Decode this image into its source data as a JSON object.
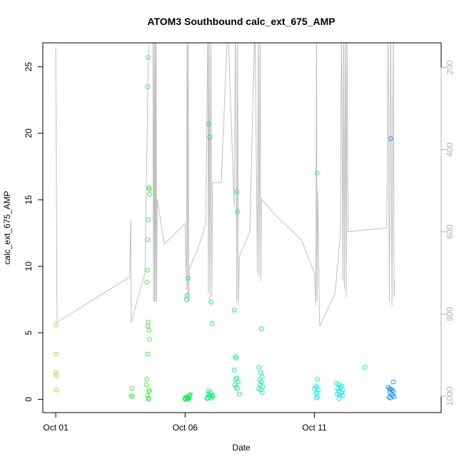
{
  "chart_data": {
    "type": "scatter",
    "title": "ATOM3 Southbound calc_ext_675_AMP",
    "xlabel": "Date",
    "ylabel": "calc_ext_675_AMP",
    "x_ticks": [
      {
        "label": "Oct 01",
        "day": 1
      },
      {
        "label": "Oct 06",
        "day": 6
      },
      {
        "label": "Oct 11",
        "day": 11
      }
    ],
    "xlim": [
      0.5,
      15.9
    ],
    "ylim": [
      -1,
      26.8
    ],
    "y_ticks": [
      0,
      5,
      10,
      15,
      20,
      25
    ],
    "depth_axis": {
      "ticks": [
        200,
        400,
        600,
        800,
        1000
      ],
      "lim": [
        1040,
        140
      ],
      "color": "#b0b0b0"
    },
    "depth_trace_color": "#c0c0c0",
    "depth_trace": [
      [
        1.0,
        150
      ],
      [
        1.05,
        820
      ],
      [
        3.85,
        710
      ],
      [
        3.9,
        570
      ],
      [
        3.92,
        820
      ],
      [
        4.45,
        700
      ],
      [
        4.6,
        90
      ],
      [
        4.75,
        90
      ],
      [
        4.78,
        770
      ],
      [
        4.8,
        90
      ],
      [
        4.82,
        770
      ],
      [
        4.84,
        90
      ],
      [
        4.86,
        770
      ],
      [
        4.88,
        90
      ],
      [
        4.9,
        770
      ],
      [
        4.92,
        520
      ],
      [
        5.2,
        630
      ],
      [
        6.0,
        580
      ],
      [
        6.05,
        740
      ],
      [
        6.08,
        90
      ],
      [
        6.1,
        760
      ],
      [
        6.12,
        90
      ],
      [
        6.14,
        770
      ],
      [
        6.16,
        690
      ],
      [
        6.5,
        640
      ],
      [
        6.8,
        580
      ],
      [
        6.88,
        90
      ],
      [
        6.9,
        750
      ],
      [
        6.93,
        90
      ],
      [
        6.96,
        770
      ],
      [
        7.0,
        90
      ],
      [
        7.03,
        760
      ],
      [
        7.06,
        480
      ],
      [
        7.4,
        480
      ],
      [
        7.65,
        90
      ],
      [
        7.9,
        540
      ],
      [
        7.95,
        90
      ],
      [
        8.0,
        770
      ],
      [
        8.03,
        90
      ],
      [
        8.06,
        780
      ],
      [
        8.1,
        660
      ],
      [
        8.5,
        600
      ],
      [
        8.7,
        90
      ],
      [
        8.8,
        700
      ],
      [
        8.83,
        90
      ],
      [
        8.86,
        710
      ],
      [
        8.9,
        90
      ],
      [
        8.93,
        720
      ],
      [
        8.95,
        520
      ],
      [
        9.5,
        560
      ],
      [
        10.5,
        620
      ],
      [
        11.0,
        700
      ],
      [
        11.05,
        780
      ],
      [
        11.08,
        90
      ],
      [
        11.1,
        770
      ],
      [
        11.13,
        500
      ],
      [
        11.2,
        830
      ],
      [
        11.8,
        750
      ],
      [
        12.0,
        610
      ],
      [
        12.05,
        90
      ],
      [
        12.1,
        720
      ],
      [
        12.13,
        90
      ],
      [
        12.16,
        740
      ],
      [
        12.2,
        90
      ],
      [
        12.23,
        760
      ],
      [
        12.26,
        90
      ],
      [
        12.3,
        600
      ],
      [
        13.8,
        590
      ],
      [
        13.85,
        90
      ],
      [
        13.9,
        770
      ],
      [
        13.95,
        90
      ],
      [
        14.0,
        780
      ],
      [
        14.05,
        90
      ],
      [
        14.08,
        760
      ],
      [
        14.1,
        720
      ]
    ],
    "series": [
      {
        "color": "#99e03a",
        "points": [
          [
            1.0,
            5.6
          ],
          [
            1.02,
            3.4
          ],
          [
            1.0,
            2.0
          ],
          [
            1.02,
            1.8
          ],
          [
            1.03,
            0.7
          ]
        ]
      },
      {
        "color": "#44e84a",
        "points": [
          [
            3.95,
            0.8
          ],
          [
            3.92,
            0.25
          ],
          [
            3.96,
            0.2
          ],
          [
            4.55,
            12.0
          ],
          [
            4.6,
            15.9
          ],
          [
            4.62,
            15.8
          ],
          [
            4.63,
            15.4
          ],
          [
            4.58,
            13.5
          ],
          [
            4.57,
            25.7
          ],
          [
            4.55,
            23.5
          ],
          [
            4.55,
            9.7
          ],
          [
            4.52,
            8.8
          ],
          [
            4.58,
            5.8
          ],
          [
            4.56,
            5.5
          ],
          [
            4.6,
            5.2
          ],
          [
            4.62,
            4.5
          ],
          [
            4.55,
            3.4
          ],
          [
            4.52,
            1.5
          ],
          [
            4.5,
            1.1
          ],
          [
            4.6,
            0.7
          ],
          [
            4.62,
            0.6
          ],
          [
            4.55,
            0.3
          ],
          [
            4.58,
            0.1
          ],
          [
            4.6,
            0.0
          ]
        ]
      },
      {
        "color": "#1ee85a",
        "points": [
          [
            6.05,
            7.5
          ],
          [
            6.08,
            7.8
          ],
          [
            6.12,
            9.1
          ],
          [
            6.0,
            0.1
          ],
          [
            6.02,
            0.05
          ],
          [
            6.1,
            0.0
          ],
          [
            6.12,
            0.1
          ],
          [
            6.15,
            0.2
          ],
          [
            6.18,
            0.3
          ],
          [
            6.1,
            0.15
          ],
          [
            6.05,
            0.2
          ],
          [
            6.2,
            0.35
          ],
          [
            6.15,
            0.05
          ],
          [
            6.0,
            0.0
          ]
        ]
      },
      {
        "color": "#18e878",
        "points": [
          [
            6.9,
            20.7
          ],
          [
            6.95,
            19.7
          ],
          [
            7.0,
            7.3
          ],
          [
            7.05,
            5.7
          ],
          [
            6.85,
            0.1
          ],
          [
            6.9,
            0.4
          ],
          [
            6.92,
            0.2
          ],
          [
            6.98,
            0.3
          ],
          [
            7.02,
            0.1
          ],
          [
            7.05,
            0.3
          ],
          [
            6.9,
            0.65
          ],
          [
            7.0,
            0.5
          ],
          [
            6.88,
            0.05
          ],
          [
            7.08,
            0.2
          ]
        ]
      },
      {
        "color": "#1ce89a",
        "points": [
          [
            7.9,
            6.7
          ],
          [
            8.0,
            15.6
          ],
          [
            8.02,
            14.1
          ],
          [
            7.95,
            3.2
          ],
          [
            7.98,
            3.1
          ],
          [
            7.9,
            2.2
          ],
          [
            8.0,
            1.6
          ],
          [
            7.95,
            1.5
          ],
          [
            8.05,
            1.3
          ],
          [
            7.92,
            1.1
          ],
          [
            7.98,
            0.9
          ],
          [
            8.02,
            0.8
          ],
          [
            8.1,
            0.4
          ]
        ]
      },
      {
        "color": "#16e8b4",
        "points": [
          [
            8.95,
            5.3
          ],
          [
            8.85,
            2.4
          ],
          [
            8.92,
            2.0
          ],
          [
            8.98,
            1.7
          ],
          [
            8.88,
            1.5
          ],
          [
            8.95,
            1.3
          ],
          [
            8.9,
            1.1
          ],
          [
            9.0,
            0.95
          ],
          [
            8.85,
            0.8
          ],
          [
            8.92,
            0.7
          ],
          [
            8.98,
            0.5
          ]
        ]
      },
      {
        "color": "#1ee8e8",
        "points": [
          [
            11.1,
            17.0
          ],
          [
            11.12,
            1.5
          ],
          [
            11.05,
            1.0
          ],
          [
            11.1,
            0.9
          ],
          [
            11.0,
            0.8
          ],
          [
            11.15,
            0.7
          ],
          [
            11.1,
            0.5
          ],
          [
            11.05,
            0.4
          ],
          [
            11.12,
            0.2
          ],
          [
            11.08,
            0.1
          ]
        ]
      },
      {
        "color": "#18e0f0",
        "points": [
          [
            12.95,
            2.4
          ],
          [
            11.85,
            1.2
          ],
          [
            11.95,
            1.1
          ],
          [
            12.05,
            1.0
          ],
          [
            12.0,
            0.9
          ],
          [
            11.9,
            0.8
          ],
          [
            12.1,
            0.7
          ],
          [
            11.92,
            0.6
          ],
          [
            12.05,
            0.5
          ],
          [
            11.88,
            0.4
          ],
          [
            11.98,
            0.3
          ],
          [
            12.1,
            0.3
          ],
          [
            11.95,
            0.05
          ]
        ]
      },
      {
        "color": "#1e90f0",
        "points": [
          [
            13.95,
            19.6
          ],
          [
            14.05,
            1.3
          ],
          [
            13.85,
            0.9
          ],
          [
            13.9,
            0.8
          ],
          [
            13.95,
            0.75
          ],
          [
            14.0,
            0.7
          ],
          [
            14.05,
            0.6
          ],
          [
            13.92,
            0.5
          ],
          [
            13.98,
            0.4
          ],
          [
            14.02,
            0.3
          ],
          [
            14.08,
            0.2
          ],
          [
            13.88,
            0.15
          ],
          [
            13.95,
            0.1
          ]
        ]
      }
    ]
  }
}
